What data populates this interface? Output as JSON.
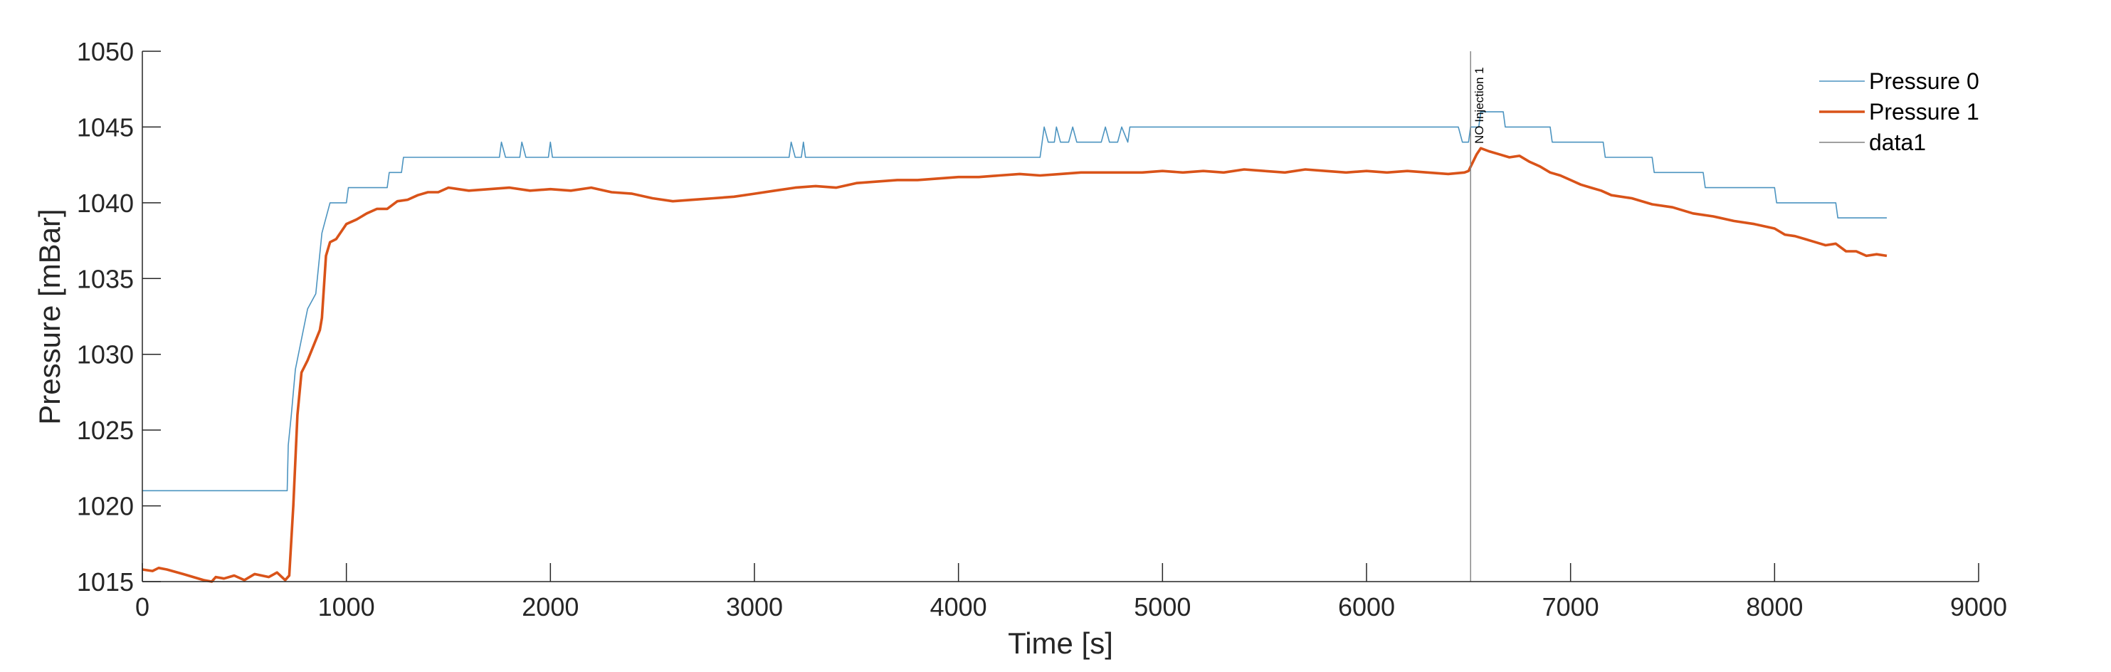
{
  "chart_data": {
    "type": "line",
    "title": "",
    "xlabel": "Time [s]",
    "ylabel": "Pressure [mBar]",
    "xlim": [
      0,
      9000
    ],
    "ylim": [
      1015,
      1050
    ],
    "xticks": [
      0,
      1000,
      2000,
      3000,
      4000,
      5000,
      6000,
      7000,
      8000,
      9000
    ],
    "yticks": [
      1015,
      1020,
      1025,
      1030,
      1035,
      1040,
      1045,
      1050
    ],
    "grid": false,
    "legend_position": "top-right",
    "series": [
      {
        "name": "Pressure 0",
        "color": "#4c94c0",
        "points": [
          [
            0,
            1021
          ],
          [
            710,
            1021
          ],
          [
            715,
            1024
          ],
          [
            730,
            1026
          ],
          [
            750,
            1029
          ],
          [
            780,
            1031
          ],
          [
            810,
            1033
          ],
          [
            850,
            1034
          ],
          [
            880,
            1038
          ],
          [
            900,
            1039
          ],
          [
            920,
            1040
          ],
          [
            1000,
            1040
          ],
          [
            1010,
            1041
          ],
          [
            1200,
            1041
          ],
          [
            1210,
            1042
          ],
          [
            1270,
            1042
          ],
          [
            1280,
            1043
          ],
          [
            1750,
            1043
          ],
          [
            1760,
            1044
          ],
          [
            1780,
            1043
          ],
          [
            1850,
            1043
          ],
          [
            1860,
            1044
          ],
          [
            1880,
            1043
          ],
          [
            1990,
            1043
          ],
          [
            2000,
            1044
          ],
          [
            2010,
            1043
          ],
          [
            3170,
            1043
          ],
          [
            3180,
            1044
          ],
          [
            3200,
            1043
          ],
          [
            3230,
            1043
          ],
          [
            3240,
            1044
          ],
          [
            3250,
            1043
          ],
          [
            4400,
            1043
          ],
          [
            4410,
            1044
          ],
          [
            4420,
            1045
          ],
          [
            4440,
            1044
          ],
          [
            4470,
            1044
          ],
          [
            4480,
            1045
          ],
          [
            4500,
            1044
          ],
          [
            4540,
            1044
          ],
          [
            4560,
            1045
          ],
          [
            4580,
            1044
          ],
          [
            4700,
            1044
          ],
          [
            4720,
            1045
          ],
          [
            4740,
            1044
          ],
          [
            4780,
            1044
          ],
          [
            4800,
            1045
          ],
          [
            4830,
            1044
          ],
          [
            4840,
            1045
          ],
          [
            6450,
            1045
          ],
          [
            6470,
            1044
          ],
          [
            6500,
            1044
          ],
          [
            6510,
            1045
          ],
          [
            6550,
            1045
          ],
          [
            6560,
            1046
          ],
          [
            6670,
            1046
          ],
          [
            6680,
            1045
          ],
          [
            6900,
            1045
          ],
          [
            6910,
            1044
          ],
          [
            7160,
            1044
          ],
          [
            7170,
            1043
          ],
          [
            7400,
            1043
          ],
          [
            7410,
            1042
          ],
          [
            7650,
            1042
          ],
          [
            7660,
            1041
          ],
          [
            8000,
            1041
          ],
          [
            8010,
            1040
          ],
          [
            8300,
            1040
          ],
          [
            8310,
            1039
          ],
          [
            8550,
            1039
          ]
        ]
      },
      {
        "name": "Pressure 1",
        "color": "#d95319",
        "points": [
          [
            0,
            1015.8
          ],
          [
            50,
            1015.7
          ],
          [
            80,
            1015.9
          ],
          [
            120,
            1015.8
          ],
          [
            200,
            1015.5
          ],
          [
            300,
            1015.1
          ],
          [
            340,
            1015.0
          ],
          [
            360,
            1015.3
          ],
          [
            400,
            1015.2
          ],
          [
            450,
            1015.4
          ],
          [
            500,
            1015.1
          ],
          [
            550,
            1015.5
          ],
          [
            620,
            1015.3
          ],
          [
            660,
            1015.6
          ],
          [
            700,
            1015.1
          ],
          [
            720,
            1015.4
          ],
          [
            740,
            1020.0
          ],
          [
            760,
            1026.0
          ],
          [
            780,
            1028.8
          ],
          [
            810,
            1029.6
          ],
          [
            840,
            1030.6
          ],
          [
            870,
            1031.6
          ],
          [
            880,
            1032.4
          ],
          [
            900,
            1036.5
          ],
          [
            920,
            1037.4
          ],
          [
            950,
            1037.6
          ],
          [
            980,
            1038.2
          ],
          [
            1000,
            1038.6
          ],
          [
            1050,
            1038.9
          ],
          [
            1100,
            1039.3
          ],
          [
            1150,
            1039.6
          ],
          [
            1200,
            1039.6
          ],
          [
            1250,
            1040.1
          ],
          [
            1300,
            1040.2
          ],
          [
            1350,
            1040.5
          ],
          [
            1400,
            1040.7
          ],
          [
            1450,
            1040.7
          ],
          [
            1500,
            1041.0
          ],
          [
            1550,
            1040.9
          ],
          [
            1600,
            1040.8
          ],
          [
            1700,
            1040.9
          ],
          [
            1800,
            1041.0
          ],
          [
            1900,
            1040.8
          ],
          [
            2000,
            1040.9
          ],
          [
            2100,
            1040.8
          ],
          [
            2200,
            1041.0
          ],
          [
            2300,
            1040.7
          ],
          [
            2400,
            1040.6
          ],
          [
            2500,
            1040.3
          ],
          [
            2600,
            1040.1
          ],
          [
            2700,
            1040.2
          ],
          [
            2800,
            1040.3
          ],
          [
            2900,
            1040.4
          ],
          [
            3000,
            1040.6
          ],
          [
            3100,
            1040.8
          ],
          [
            3200,
            1041.0
          ],
          [
            3300,
            1041.1
          ],
          [
            3400,
            1041.0
          ],
          [
            3500,
            1041.3
          ],
          [
            3600,
            1041.4
          ],
          [
            3700,
            1041.5
          ],
          [
            3800,
            1041.5
          ],
          [
            3900,
            1041.6
          ],
          [
            4000,
            1041.7
          ],
          [
            4100,
            1041.7
          ],
          [
            4200,
            1041.8
          ],
          [
            4300,
            1041.9
          ],
          [
            4400,
            1041.8
          ],
          [
            4500,
            1041.9
          ],
          [
            4600,
            1042.0
          ],
          [
            4700,
            1042.0
          ],
          [
            4800,
            1042.0
          ],
          [
            4900,
            1042.0
          ],
          [
            5000,
            1042.1
          ],
          [
            5100,
            1042.0
          ],
          [
            5200,
            1042.1
          ],
          [
            5300,
            1042.0
          ],
          [
            5400,
            1042.2
          ],
          [
            5500,
            1042.1
          ],
          [
            5600,
            1042.0
          ],
          [
            5700,
            1042.2
          ],
          [
            5800,
            1042.1
          ],
          [
            5900,
            1042.0
          ],
          [
            6000,
            1042.1
          ],
          [
            6100,
            1042.0
          ],
          [
            6200,
            1042.1
          ],
          [
            6300,
            1042.0
          ],
          [
            6400,
            1041.9
          ],
          [
            6480,
            1042.0
          ],
          [
            6500,
            1042.1
          ],
          [
            6540,
            1043.2
          ],
          [
            6560,
            1043.6
          ],
          [
            6600,
            1043.4
          ],
          [
            6650,
            1043.2
          ],
          [
            6700,
            1043.0
          ],
          [
            6750,
            1043.1
          ],
          [
            6800,
            1042.7
          ],
          [
            6850,
            1042.4
          ],
          [
            6900,
            1042.0
          ],
          [
            6950,
            1041.8
          ],
          [
            7000,
            1041.5
          ],
          [
            7050,
            1041.2
          ],
          [
            7100,
            1041.0
          ],
          [
            7150,
            1040.8
          ],
          [
            7200,
            1040.5
          ],
          [
            7300,
            1040.3
          ],
          [
            7400,
            1039.9
          ],
          [
            7500,
            1039.7
          ],
          [
            7600,
            1039.3
          ],
          [
            7700,
            1039.1
          ],
          [
            7800,
            1038.8
          ],
          [
            7900,
            1038.6
          ],
          [
            8000,
            1038.3
          ],
          [
            8050,
            1037.9
          ],
          [
            8100,
            1037.8
          ],
          [
            8150,
            1037.6
          ],
          [
            8200,
            1037.4
          ],
          [
            8250,
            1037.2
          ],
          [
            8300,
            1037.3
          ],
          [
            8350,
            1036.8
          ],
          [
            8400,
            1036.8
          ],
          [
            8450,
            1036.5
          ],
          [
            8500,
            1036.6
          ],
          [
            8550,
            1036.5
          ]
        ]
      },
      {
        "name": "data1",
        "color": "#808080",
        "points": [
          [
            6510,
            1015
          ],
          [
            6510,
            1050
          ]
        ]
      }
    ],
    "annotations": [
      {
        "text": "NO Injection 1",
        "x": 6510
      }
    ]
  }
}
